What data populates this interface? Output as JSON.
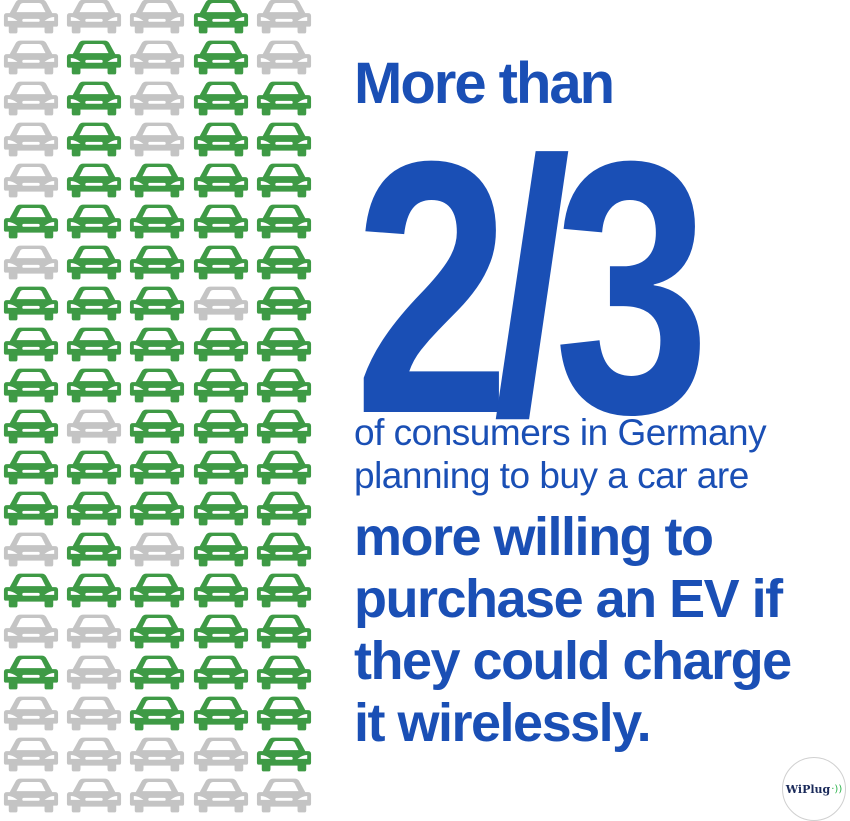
{
  "headline": {
    "top": "More than",
    "fraction": "2/3",
    "line1": "of consumers in Germany",
    "line2": "planning to buy a car are",
    "bold_lines": [
      "more willing to",
      "purchase an EV if",
      "they could charge",
      "it wirelessly."
    ]
  },
  "logo": {
    "text": "WiPlug",
    "waves": "·))"
  },
  "colors": {
    "accent_blue": "#1a4fb5",
    "ev_green": "#3e9a45",
    "car_grey": "#c4c4c4"
  },
  "car_icon": "car-front-icon",
  "car_grid": {
    "columns": 5,
    "rows": 20,
    "pattern": [
      "GGGEG",
      "GEGEG",
      "GEGEE",
      "GEGEE",
      "GEEEE",
      "EEEEE",
      "GEEEE",
      "EEEGE",
      "EEEEE",
      "EEEEE",
      "EGEEE",
      "EEEEE",
      "EEEEE",
      "GEGEE",
      "EEEEE",
      "GGEEE",
      "EGEEE",
      "GGEEE",
      "GGGGE",
      "GGGGG"
    ]
  }
}
